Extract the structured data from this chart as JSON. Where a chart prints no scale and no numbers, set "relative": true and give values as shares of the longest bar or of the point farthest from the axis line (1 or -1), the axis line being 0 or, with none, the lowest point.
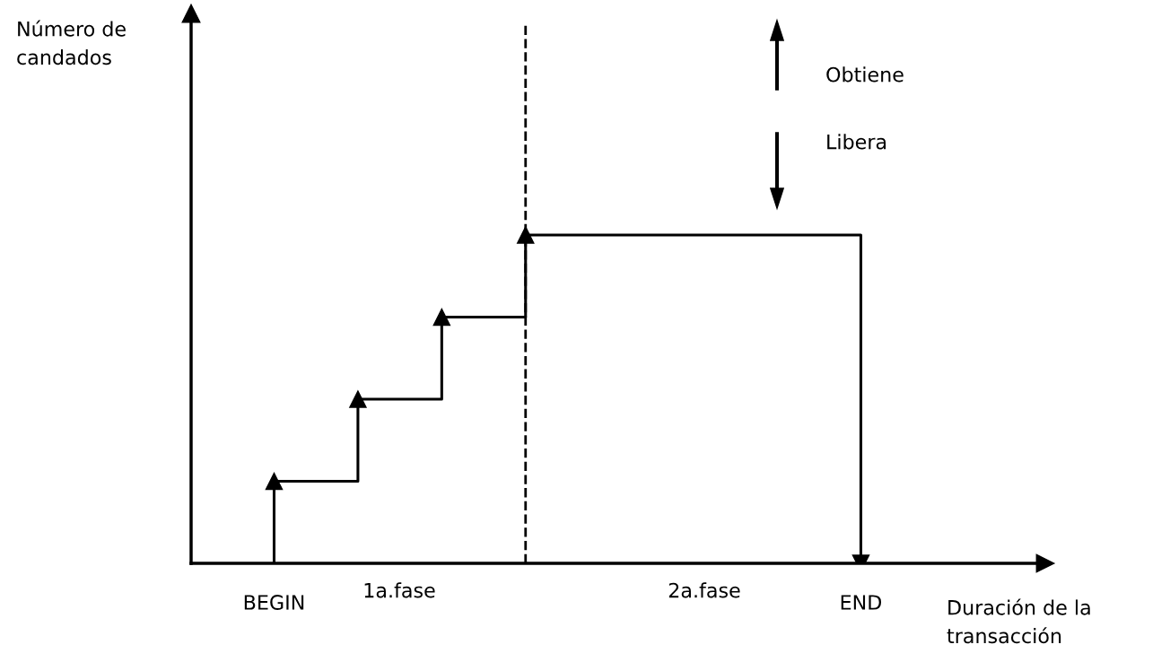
{
  "chart_data": {
    "type": "step",
    "relative": true,
    "xlabel": "Duración de la\ntransacción",
    "categories": [
      "BEGIN",
      null,
      null,
      null,
      null,
      null,
      null,
      "END"
    ],
    "series": [
      {
        "color": "#000000",
        "values": [
          0.25,
          0.5,
          0.75,
          1,
          1,
          1,
          1,
          0
        ]
      }
    ],
    "marker": "triangle",
    "line_style": "solid",
    "annotations": [
      "1a.fase",
      "2a.fase",
      "Obtiene",
      "Libera",
      "Número de\ncandados"
    ]
  }
}
